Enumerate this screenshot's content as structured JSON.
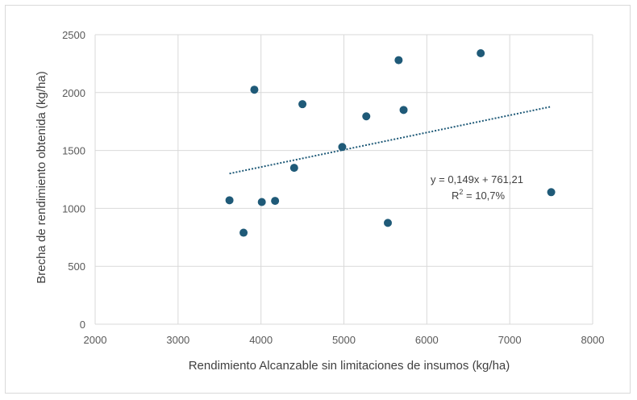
{
  "chart_data": {
    "type": "scatter",
    "title": "",
    "xlabel": "Rendimiento Alcanzable sin limitaciones de insumos (kg/ha)",
    "ylabel": "Brecha de rendimiento obtenida (kg/ha)",
    "xlim": [
      2000,
      8000
    ],
    "ylim": [
      0,
      2500
    ],
    "x_ticks": [
      2000,
      3000,
      4000,
      5000,
      6000,
      7000,
      8000
    ],
    "y_ticks": [
      0,
      500,
      1000,
      1500,
      2000,
      2500
    ],
    "x_tick_labels": [
      "2000",
      "3000",
      "4000",
      "5000",
      "6000",
      "7000",
      "8000"
    ],
    "y_tick_labels": [
      "0",
      "500",
      "1000",
      "1500",
      "2000",
      "2500"
    ],
    "grid": true,
    "legend": "none",
    "marker_color": "#1f5a78",
    "trendline_color": "#1f5a78",
    "points": [
      {
        "x": 3620,
        "y": 1070
      },
      {
        "x": 3790,
        "y": 790
      },
      {
        "x": 3920,
        "y": 2025
      },
      {
        "x": 4010,
        "y": 1055
      },
      {
        "x": 4170,
        "y": 1065
      },
      {
        "x": 4400,
        "y": 1350
      },
      {
        "x": 4500,
        "y": 1900
      },
      {
        "x": 4980,
        "y": 1530
      },
      {
        "x": 5270,
        "y": 1795
      },
      {
        "x": 5530,
        "y": 875
      },
      {
        "x": 5660,
        "y": 2280
      },
      {
        "x": 5720,
        "y": 1850
      },
      {
        "x": 6650,
        "y": 2340
      },
      {
        "x": 7500,
        "y": 1140
      }
    ],
    "trendline": {
      "type": "linear",
      "slope": 0.149,
      "intercept": 761.21,
      "x_range": [
        3620,
        7500
      ],
      "equation_text": "y = 0,149x + 761,21",
      "r2_prefix": "R",
      "r2_superscript": "2",
      "r2_value_text": " = 10,7%"
    }
  }
}
